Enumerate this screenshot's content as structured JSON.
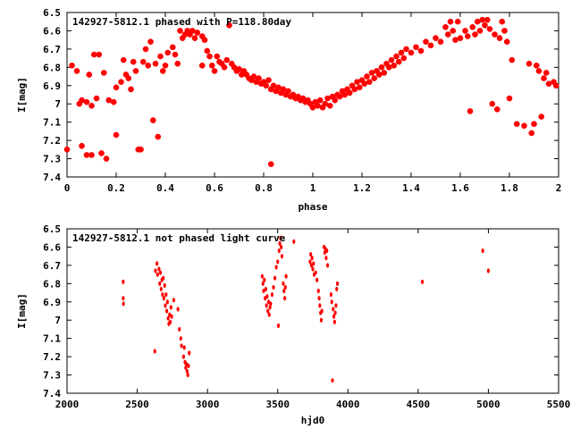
{
  "chart_data": [
    {
      "type": "scatter",
      "title": "142927-5812.1 phased with P=118.80day",
      "xlabel": "phase",
      "ylabel": "I[mag]",
      "xlim": [
        0,
        2
      ],
      "ylim": [
        6.5,
        7.4
      ],
      "y_inverted": true,
      "xticks": [
        "0",
        "0.2",
        "0.4",
        "0.6",
        "0.8",
        "1",
        "1.2",
        "1.4",
        "1.6",
        "1.8",
        "2"
      ],
      "yticks": [
        "6.5",
        "6.6",
        "6.7",
        "6.8",
        "6.9",
        "7",
        "7.1",
        "7.2",
        "7.3",
        "7.4"
      ],
      "marker_color": "#ff0000",
      "grid": false,
      "points": [
        [
          0.0,
          7.25
        ],
        [
          0.02,
          6.79
        ],
        [
          0.04,
          6.82
        ],
        [
          0.05,
          7.0
        ],
        [
          0.06,
          6.98
        ],
        [
          0.06,
          7.23
        ],
        [
          0.08,
          6.99
        ],
        [
          0.08,
          7.28
        ],
        [
          0.09,
          6.84
        ],
        [
          0.1,
          7.01
        ],
        [
          0.1,
          7.28
        ],
        [
          0.11,
          6.73
        ],
        [
          0.12,
          6.97
        ],
        [
          0.13,
          6.73
        ],
        [
          0.14,
          7.27
        ],
        [
          0.15,
          6.83
        ],
        [
          0.16,
          7.3
        ],
        [
          0.17,
          6.98
        ],
        [
          0.19,
          6.99
        ],
        [
          0.2,
          7.17
        ],
        [
          0.2,
          6.91
        ],
        [
          0.22,
          6.88
        ],
        [
          0.23,
          6.76
        ],
        [
          0.24,
          6.84
        ],
        [
          0.25,
          6.86
        ],
        [
          0.26,
          6.92
        ],
        [
          0.27,
          6.77
        ],
        [
          0.28,
          6.82
        ],
        [
          0.29,
          7.25
        ],
        [
          0.3,
          7.25
        ],
        [
          0.31,
          6.77
        ],
        [
          0.32,
          6.7
        ],
        [
          0.33,
          6.79
        ],
        [
          0.34,
          6.66
        ],
        [
          0.35,
          7.09
        ],
        [
          0.36,
          6.78
        ],
        [
          0.37,
          7.18
        ],
        [
          0.38,
          6.74
        ],
        [
          0.39,
          6.82
        ],
        [
          0.4,
          6.79
        ],
        [
          0.41,
          6.72
        ],
        [
          0.43,
          6.69
        ],
        [
          0.44,
          6.73
        ],
        [
          0.45,
          6.78
        ],
        [
          0.46,
          6.6
        ],
        [
          0.47,
          6.64
        ],
        [
          0.48,
          6.62
        ],
        [
          0.49,
          6.6
        ],
        [
          0.5,
          6.62
        ],
        [
          0.51,
          6.6
        ],
        [
          0.52,
          6.64
        ],
        [
          0.53,
          6.61
        ],
        [
          0.55,
          6.63
        ],
        [
          0.55,
          6.79
        ],
        [
          0.56,
          6.65
        ],
        [
          0.57,
          6.71
        ],
        [
          0.58,
          6.74
        ],
        [
          0.59,
          6.79
        ],
        [
          0.6,
          6.82
        ],
        [
          0.61,
          6.74
        ],
        [
          0.62,
          6.77
        ],
        [
          0.63,
          6.78
        ],
        [
          0.64,
          6.8
        ],
        [
          0.65,
          6.76
        ],
        [
          0.66,
          6.57
        ],
        [
          0.67,
          6.78
        ],
        [
          0.68,
          6.8
        ],
        [
          0.69,
          6.82
        ],
        [
          0.7,
          6.81
        ],
        [
          0.71,
          6.84
        ],
        [
          0.72,
          6.82
        ],
        [
          0.73,
          6.84
        ],
        [
          0.74,
          6.86
        ],
        [
          0.75,
          6.87
        ],
        [
          0.76,
          6.85
        ],
        [
          0.77,
          6.88
        ],
        [
          0.78,
          6.86
        ],
        [
          0.79,
          6.89
        ],
        [
          0.8,
          6.88
        ],
        [
          0.81,
          6.9
        ],
        [
          0.82,
          6.87
        ],
        [
          0.83,
          6.92
        ],
        [
          0.83,
          7.33
        ],
        [
          0.84,
          6.9
        ],
        [
          0.85,
          6.93
        ],
        [
          0.86,
          6.91
        ],
        [
          0.87,
          6.94
        ],
        [
          0.88,
          6.92
        ],
        [
          0.89,
          6.95
        ],
        [
          0.9,
          6.93
        ],
        [
          0.91,
          6.96
        ],
        [
          0.92,
          6.95
        ],
        [
          0.93,
          6.97
        ],
        [
          0.94,
          6.96
        ],
        [
          0.95,
          6.98
        ],
        [
          0.96,
          6.97
        ],
        [
          0.97,
          6.99
        ],
        [
          0.98,
          6.98
        ],
        [
          0.99,
          7.0
        ],
        [
          1.0,
          7.02
        ],
        [
          1.01,
          6.99
        ],
        [
          1.02,
          7.01
        ],
        [
          1.03,
          6.98
        ],
        [
          1.04,
          7.02
        ],
        [
          1.05,
          7.0
        ],
        [
          1.06,
          6.97
        ],
        [
          1.07,
          7.01
        ],
        [
          1.08,
          6.96
        ],
        [
          1.09,
          6.98
        ],
        [
          1.1,
          6.95
        ],
        [
          1.11,
          6.96
        ],
        [
          1.12,
          6.93
        ],
        [
          1.13,
          6.95
        ],
        [
          1.14,
          6.92
        ],
        [
          1.15,
          6.94
        ],
        [
          1.16,
          6.9
        ],
        [
          1.17,
          6.92
        ],
        [
          1.18,
          6.88
        ],
        [
          1.19,
          6.91
        ],
        [
          1.2,
          6.87
        ],
        [
          1.21,
          6.89
        ],
        [
          1.22,
          6.85
        ],
        [
          1.23,
          6.88
        ],
        [
          1.24,
          6.83
        ],
        [
          1.25,
          6.86
        ],
        [
          1.26,
          6.82
        ],
        [
          1.27,
          6.84
        ],
        [
          1.28,
          6.8
        ],
        [
          1.29,
          6.83
        ],
        [
          1.3,
          6.78
        ],
        [
          1.31,
          6.8
        ],
        [
          1.32,
          6.76
        ],
        [
          1.33,
          6.79
        ],
        [
          1.34,
          6.74
        ],
        [
          1.35,
          6.77
        ],
        [
          1.36,
          6.72
        ],
        [
          1.37,
          6.75
        ],
        [
          1.38,
          6.7
        ],
        [
          1.4,
          6.72
        ],
        [
          1.42,
          6.69
        ],
        [
          1.44,
          6.71
        ],
        [
          1.46,
          6.66
        ],
        [
          1.48,
          6.68
        ],
        [
          1.5,
          6.64
        ],
        [
          1.52,
          6.66
        ],
        [
          1.54,
          6.58
        ],
        [
          1.55,
          6.62
        ],
        [
          1.56,
          6.55
        ],
        [
          1.57,
          6.6
        ],
        [
          1.58,
          6.65
        ],
        [
          1.59,
          6.55
        ],
        [
          1.6,
          6.64
        ],
        [
          1.62,
          6.6
        ],
        [
          1.63,
          6.63
        ],
        [
          1.64,
          7.04
        ],
        [
          1.65,
          6.58
        ],
        [
          1.66,
          6.62
        ],
        [
          1.67,
          6.55
        ],
        [
          1.68,
          6.6
        ],
        [
          1.69,
          6.54
        ],
        [
          1.7,
          6.57
        ],
        [
          1.71,
          6.54
        ],
        [
          1.72,
          6.59
        ],
        [
          1.73,
          7.0
        ],
        [
          1.74,
          6.62
        ],
        [
          1.75,
          7.03
        ],
        [
          1.76,
          6.64
        ],
        [
          1.77,
          6.55
        ],
        [
          1.78,
          6.6
        ],
        [
          1.79,
          6.66
        ],
        [
          1.8,
          6.97
        ],
        [
          1.81,
          6.76
        ],
        [
          1.83,
          7.11
        ],
        [
          1.86,
          7.12
        ],
        [
          1.88,
          6.78
        ],
        [
          1.89,
          7.16
        ],
        [
          1.9,
          7.11
        ],
        [
          1.91,
          6.79
        ],
        [
          1.92,
          6.82
        ],
        [
          1.93,
          7.07
        ],
        [
          1.94,
          6.86
        ],
        [
          1.95,
          6.83
        ],
        [
          1.96,
          6.89
        ],
        [
          1.98,
          6.88
        ],
        [
          1.99,
          6.9
        ]
      ]
    },
    {
      "type": "scatter",
      "title": "142927-5812.1 not phased light curve",
      "xlabel": "hjd0",
      "ylabel": "I[mag]",
      "xlim": [
        2000,
        5500
      ],
      "ylim": [
        6.5,
        7.4
      ],
      "y_inverted": true,
      "xticks": [
        "2000",
        "2500",
        "3000",
        "3500",
        "4000",
        "4500",
        "5000",
        "5500"
      ],
      "yticks": [
        "6.5",
        "6.6",
        "6.7",
        "6.8",
        "6.9",
        "7",
        "7.1",
        "7.2",
        "7.3",
        "7.4"
      ],
      "marker_color": "#ff0000",
      "grid": false,
      "points": [
        [
          2400,
          6.79
        ],
        [
          2400,
          6.88
        ],
        [
          2402,
          6.91
        ],
        [
          2625,
          7.17
        ],
        [
          2630,
          6.73
        ],
        [
          2640,
          6.69
        ],
        [
          2645,
          6.75
        ],
        [
          2655,
          6.72
        ],
        [
          2660,
          6.8
        ],
        [
          2665,
          6.74
        ],
        [
          2670,
          6.83
        ],
        [
          2675,
          6.78
        ],
        [
          2680,
          6.86
        ],
        [
          2685,
          6.77
        ],
        [
          2690,
          6.88
        ],
        [
          2695,
          6.81
        ],
        [
          2700,
          6.92
        ],
        [
          2705,
          6.86
        ],
        [
          2710,
          6.95
        ],
        [
          2715,
          6.9
        ],
        [
          2720,
          6.99
        ],
        [
          2725,
          7.02
        ],
        [
          2730,
          6.97
        ],
        [
          2735,
          7.01
        ],
        [
          2740,
          6.93
        ],
        [
          2745,
          6.98
        ],
        [
          2760,
          6.89
        ],
        [
          2790,
          6.94
        ],
        [
          2800,
          7.05
        ],
        [
          2810,
          7.1
        ],
        [
          2815,
          7.14
        ],
        [
          2830,
          7.2
        ],
        [
          2835,
          7.15
        ],
        [
          2840,
          7.23
        ],
        [
          2845,
          7.26
        ],
        [
          2850,
          7.24
        ],
        [
          2855,
          7.28
        ],
        [
          2860,
          7.3
        ],
        [
          2865,
          7.25
        ],
        [
          2870,
          7.18
        ],
        [
          3390,
          6.76
        ],
        [
          3395,
          6.8
        ],
        [
          3400,
          6.84
        ],
        [
          3405,
          6.78
        ],
        [
          3410,
          6.88
        ],
        [
          3415,
          6.83
        ],
        [
          3420,
          6.92
        ],
        [
          3425,
          6.87
        ],
        [
          3430,
          6.95
        ],
        [
          3435,
          6.9
        ],
        [
          3440,
          6.97
        ],
        [
          3445,
          6.93
        ],
        [
          3450,
          6.91
        ],
        [
          3460,
          6.86
        ],
        [
          3470,
          6.82
        ],
        [
          3480,
          6.77
        ],
        [
          3490,
          6.71
        ],
        [
          3500,
          6.68
        ],
        [
          3505,
          7.03
        ],
        [
          3510,
          6.62
        ],
        [
          3515,
          6.58
        ],
        [
          3520,
          6.55
        ],
        [
          3525,
          6.6
        ],
        [
          3530,
          6.65
        ],
        [
          3540,
          6.8
        ],
        [
          3545,
          6.84
        ],
        [
          3550,
          6.88
        ],
        [
          3555,
          6.82
        ],
        [
          3560,
          6.76
        ],
        [
          3615,
          6.57
        ],
        [
          3730,
          6.68
        ],
        [
          3735,
          6.64
        ],
        [
          3740,
          6.7
        ],
        [
          3745,
          6.66
        ],
        [
          3750,
          6.72
        ],
        [
          3755,
          6.69
        ],
        [
          3760,
          6.75
        ],
        [
          3770,
          6.74
        ],
        [
          3780,
          6.78
        ],
        [
          3790,
          6.84
        ],
        [
          3795,
          6.88
        ],
        [
          3800,
          6.92
        ],
        [
          3805,
          6.96
        ],
        [
          3810,
          7.0
        ],
        [
          3815,
          6.95
        ],
        [
          3830,
          6.6
        ],
        [
          3835,
          6.63
        ],
        [
          3840,
          6.61
        ],
        [
          3845,
          6.66
        ],
        [
          3850,
          6.62
        ],
        [
          3855,
          6.7
        ],
        [
          3880,
          6.86
        ],
        [
          3885,
          6.9
        ],
        [
          3890,
          7.33
        ],
        [
          3895,
          6.94
        ],
        [
          3900,
          6.98
        ],
        [
          3905,
          7.01
        ],
        [
          3910,
          6.96
        ],
        [
          3915,
          6.92
        ],
        [
          3920,
          6.83
        ],
        [
          3925,
          6.8
        ],
        [
          4530,
          6.79
        ],
        [
          4960,
          6.62
        ],
        [
          5000,
          6.73
        ]
      ]
    }
  ]
}
